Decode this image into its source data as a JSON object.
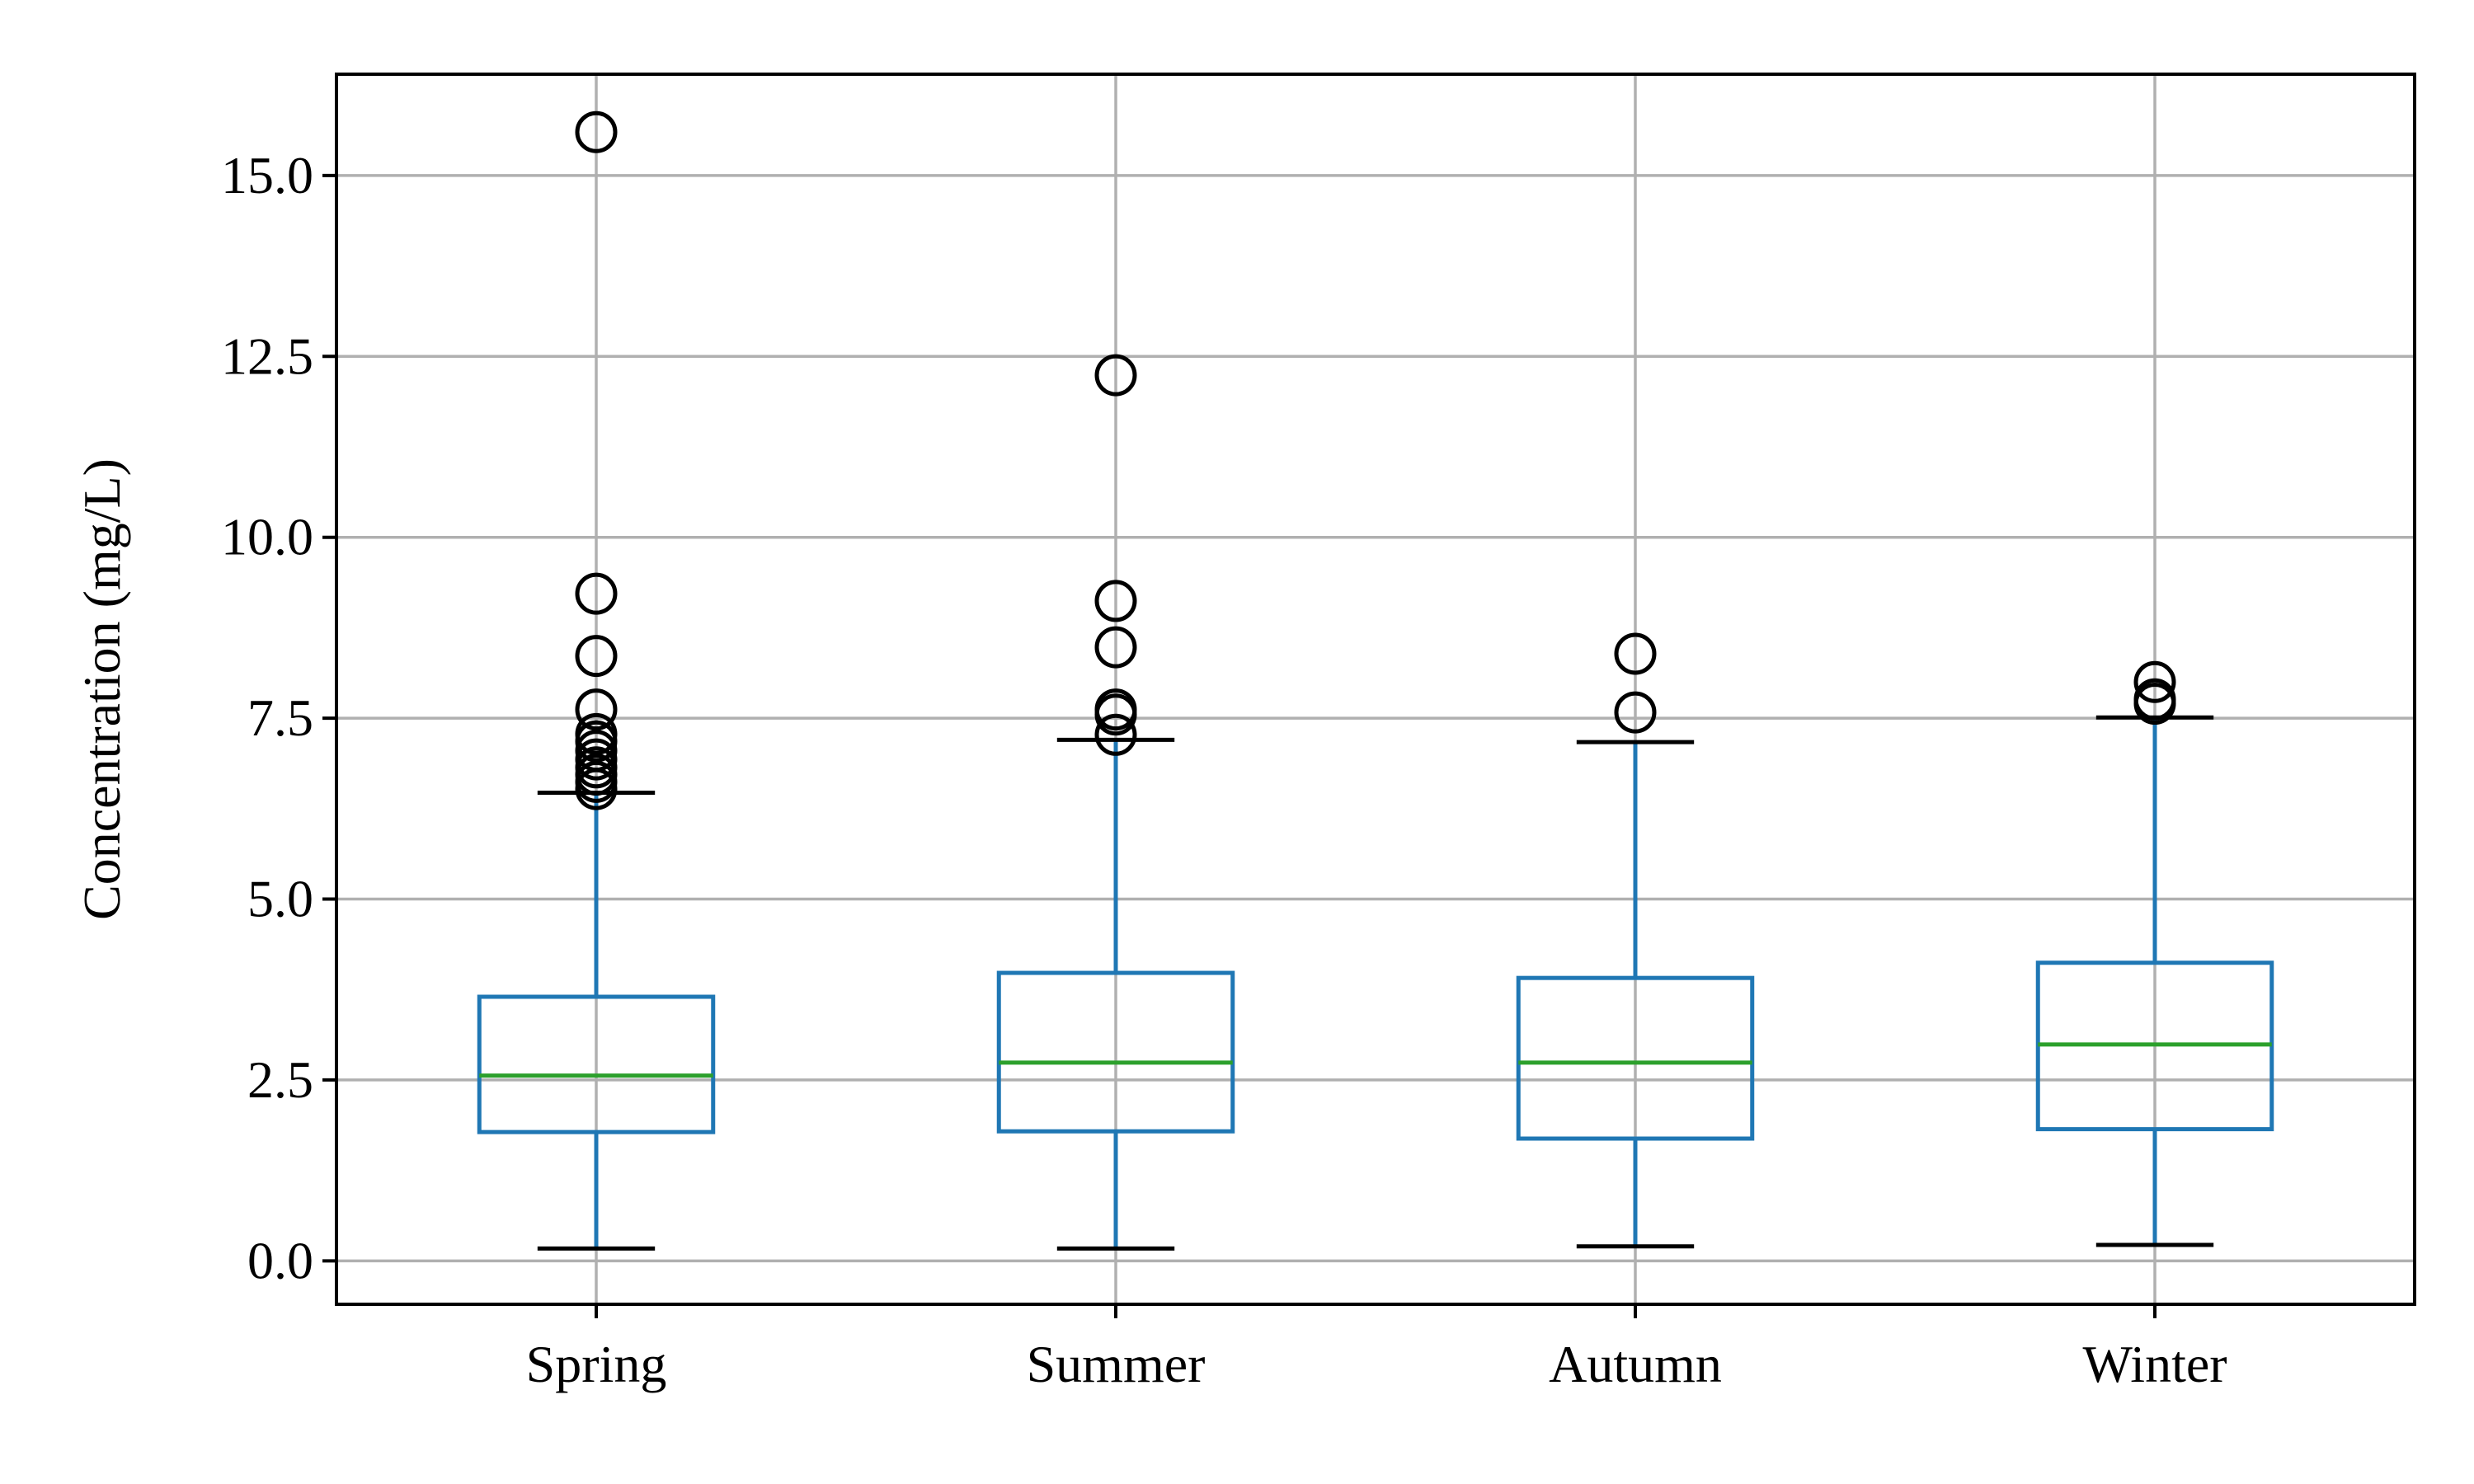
{
  "chart_data": {
    "type": "box",
    "title": "",
    "xlabel": "",
    "ylabel": "Concentration (mg/L)",
    "ylim": [
      -0.6,
      16.4
    ],
    "yticks": [
      0.0,
      2.5,
      5.0,
      7.5,
      10.0,
      12.5,
      15.0
    ],
    "ytick_labels": [
      "0.0",
      "2.5",
      "5.0",
      "7.5",
      "10.0",
      "12.5",
      "15.0"
    ],
    "grid": true,
    "categories": [
      "Spring",
      "Summer",
      "Autumn",
      "Winter"
    ],
    "boxes": [
      {
        "category": "Spring",
        "whisker_low": 0.17,
        "q1": 1.78,
        "median": 2.56,
        "q3": 3.65,
        "whisker_high": 6.47,
        "outliers": [
          15.6,
          9.22,
          8.36,
          7.62,
          7.28,
          7.18,
          7.05,
          6.93,
          6.82,
          6.72,
          6.62,
          6.52
        ]
      },
      {
        "category": "Summer",
        "whisker_low": 0.17,
        "q1": 1.79,
        "median": 2.74,
        "q3": 3.98,
        "whisker_high": 7.2,
        "outliers": [
          12.24,
          9.12,
          8.48,
          7.62,
          7.55,
          7.27
        ]
      },
      {
        "category": "Autumn",
        "whisker_low": 0.2,
        "q1": 1.69,
        "median": 2.74,
        "q3": 3.91,
        "whisker_high": 7.17,
        "outliers": [
          8.39,
          7.58
        ]
      },
      {
        "category": "Winter",
        "whisker_low": 0.22,
        "q1": 1.82,
        "median": 2.99,
        "q3": 4.12,
        "whisker_high": 7.51,
        "outliers": [
          8.0,
          7.76,
          7.7
        ]
      }
    ],
    "colors": {
      "box": "#1f77b4",
      "median": "#2ca02c",
      "whisker_cap": "#000000",
      "outlier": "#000000",
      "grid": "#b0b0b0"
    }
  }
}
